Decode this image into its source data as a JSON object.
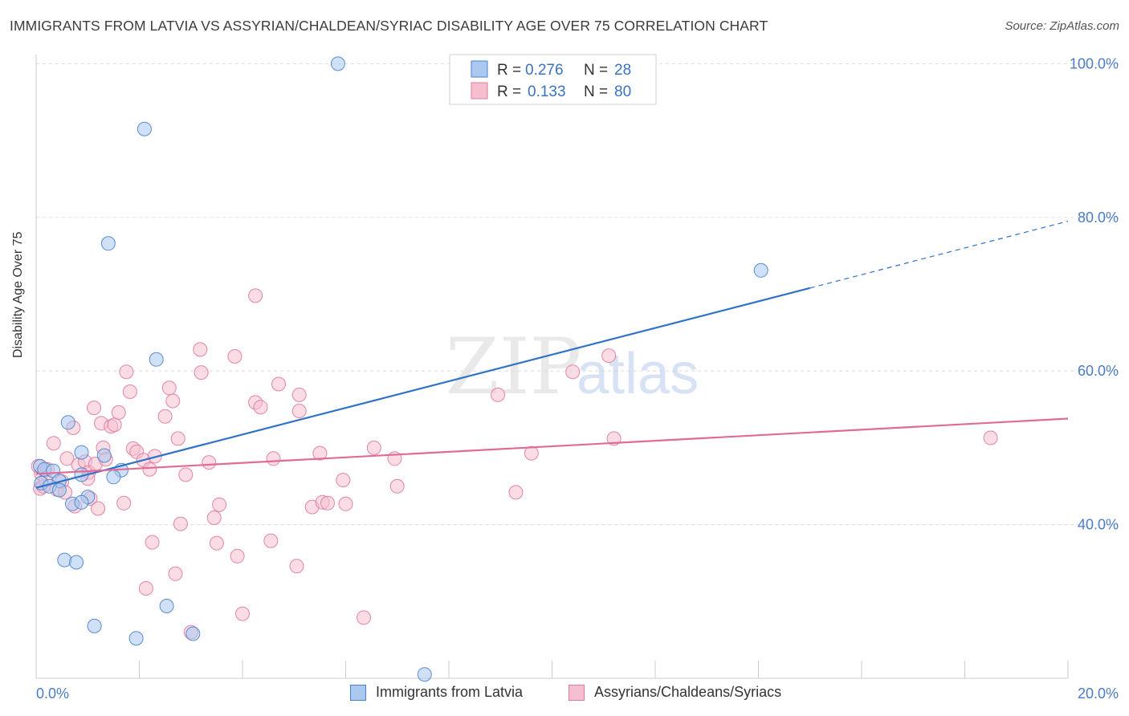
{
  "header": {
    "title": "IMMIGRANTS FROM LATVIA VS ASSYRIAN/CHALDEAN/SYRIAC DISABILITY AGE OVER 75 CORRELATION CHART",
    "source": "Source: ZipAtlas.com"
  },
  "watermark": {
    "zip": "ZIP",
    "atlas": "atlas"
  },
  "colors": {
    "blue_fill": "#aac8f0",
    "blue_stroke": "#4a82cc",
    "blue_line": "#2f72c8",
    "pink_fill": "#f6bfd0",
    "pink_stroke": "#e07a9c",
    "pink_line": "#e06c96",
    "tick_text": "#4a7cc7",
    "grid": "#dddddd"
  },
  "legend": {
    "rows": [
      {
        "series": "blue",
        "r_label": "R =",
        "r_value": "0.276",
        "n_label": "N =",
        "n_value": "28"
      },
      {
        "series": "pink",
        "r_label": "R =",
        "r_value": "0.133",
        "n_label": "N =",
        "n_value": "80"
      }
    ],
    "bottom": [
      {
        "series": "blue",
        "label": "Immigrants from Latvia"
      },
      {
        "series": "pink",
        "label": "Assyrians/Chaldeans/Syriacs"
      }
    ]
  },
  "chart_data": {
    "type": "scatter",
    "title": "IMMIGRANTS FROM LATVIA VS ASSYRIAN/CHALDEAN/SYRIAC DISABILITY AGE OVER 75 CORRELATION CHART",
    "xlabel": "",
    "ylabel": "Disability Age Over 75",
    "xlim": [
      0,
      20
    ],
    "ylim": [
      20,
      102
    ],
    "x_tick_labels": [
      {
        "value": 0,
        "label": "0.0%"
      },
      {
        "value": 20,
        "label": "20.0%"
      }
    ],
    "y_tick_labels": [
      {
        "value": 40,
        "label": "40.0%"
      },
      {
        "value": 60,
        "label": "60.0%"
      },
      {
        "value": 80,
        "label": "80.0%"
      },
      {
        "value": 100,
        "label": "100.0%"
      }
    ],
    "y_gridlines": [
      40,
      60,
      80,
      100
    ],
    "legend_position": "top-center",
    "series": [
      {
        "name": "Immigrants from Latvia",
        "color": "blue",
        "R": 0.276,
        "N": 28,
        "trend": {
          "x0": 0,
          "y0": 44.8,
          "x1": 15.0,
          "y1": 70.8,
          "dash_to_x": 20,
          "dash_to_y": 79.5
        },
        "points": [
          [
            5.85,
            100.0
          ],
          [
            2.1,
            91.5
          ],
          [
            1.4,
            76.6
          ],
          [
            14.05,
            73.1
          ],
          [
            2.33,
            61.5
          ],
          [
            0.62,
            53.3
          ],
          [
            0.88,
            49.4
          ],
          [
            1.32,
            49.0
          ],
          [
            0.08,
            47.6
          ],
          [
            0.16,
            47.2
          ],
          [
            0.33,
            47.0
          ],
          [
            1.65,
            47.1
          ],
          [
            0.88,
            46.5
          ],
          [
            0.45,
            45.7
          ],
          [
            1.5,
            46.2
          ],
          [
            0.1,
            45.4
          ],
          [
            0.26,
            45.0
          ],
          [
            0.45,
            44.5
          ],
          [
            1.0,
            43.6
          ],
          [
            0.7,
            42.7
          ],
          [
            0.88,
            42.9
          ],
          [
            0.55,
            35.4
          ],
          [
            0.78,
            35.1
          ],
          [
            2.53,
            29.4
          ],
          [
            1.13,
            26.8
          ],
          [
            1.94,
            25.2
          ],
          [
            3.04,
            25.8
          ],
          [
            7.53,
            20.5
          ]
        ]
      },
      {
        "name": "Assyrians/Chaldeans/Syriacs",
        "color": "pink",
        "R": 0.133,
        "N": 80,
        "trend": {
          "x0": 0,
          "y0": 46.6,
          "x1": 20,
          "y1": 53.8
        },
        "points": [
          [
            0.04,
            47.6
          ],
          [
            0.1,
            46.6
          ],
          [
            0.08,
            44.7
          ],
          [
            0.14,
            45.0
          ],
          [
            0.22,
            47.2
          ],
          [
            0.34,
            50.6
          ],
          [
            0.4,
            44.6
          ],
          [
            0.5,
            45.6
          ],
          [
            0.56,
            44.2
          ],
          [
            0.6,
            48.6
          ],
          [
            0.72,
            52.6
          ],
          [
            0.75,
            42.4
          ],
          [
            0.82,
            47.8
          ],
          [
            0.95,
            48.2
          ],
          [
            1.02,
            46.8
          ],
          [
            1.05,
            43.4
          ],
          [
            1.12,
            55.2
          ],
          [
            1.15,
            47.9
          ],
          [
            1.2,
            42.1
          ],
          [
            1.26,
            53.2
          ],
          [
            1.3,
            50.0
          ],
          [
            1.35,
            48.5
          ],
          [
            1.45,
            52.8
          ],
          [
            1.52,
            53.0
          ],
          [
            1.6,
            54.6
          ],
          [
            1.7,
            42.8
          ],
          [
            1.75,
            59.9
          ],
          [
            1.82,
            57.3
          ],
          [
            1.88,
            49.9
          ],
          [
            1.95,
            49.5
          ],
          [
            2.08,
            48.4
          ],
          [
            2.13,
            31.7
          ],
          [
            2.2,
            47.2
          ],
          [
            2.25,
            37.7
          ],
          [
            2.3,
            48.9
          ],
          [
            2.5,
            54.1
          ],
          [
            2.58,
            57.8
          ],
          [
            2.65,
            56.1
          ],
          [
            2.7,
            33.6
          ],
          [
            2.75,
            51.2
          ],
          [
            2.8,
            40.1
          ],
          [
            2.9,
            46.5
          ],
          [
            3.0,
            26.0
          ],
          [
            3.18,
            62.8
          ],
          [
            3.2,
            59.8
          ],
          [
            3.35,
            48.1
          ],
          [
            3.45,
            40.9
          ],
          [
            3.55,
            42.6
          ],
          [
            3.5,
            37.6
          ],
          [
            3.85,
            61.9
          ],
          [
            3.9,
            35.9
          ],
          [
            4.0,
            28.4
          ],
          [
            4.25,
            55.9
          ],
          [
            4.35,
            55.3
          ],
          [
            4.25,
            69.8
          ],
          [
            4.55,
            37.9
          ],
          [
            4.6,
            48.6
          ],
          [
            4.7,
            58.3
          ],
          [
            5.05,
            34.6
          ],
          [
            5.1,
            54.8
          ],
          [
            5.1,
            56.9
          ],
          [
            5.35,
            42.3
          ],
          [
            5.5,
            49.3
          ],
          [
            5.55,
            42.9
          ],
          [
            5.65,
            42.8
          ],
          [
            5.95,
            45.8
          ],
          [
            6.0,
            42.7
          ],
          [
            6.35,
            27.9
          ],
          [
            6.55,
            50.0
          ],
          [
            6.95,
            48.6
          ],
          [
            8.95,
            56.9
          ],
          [
            9.3,
            44.2
          ],
          [
            9.6,
            49.3
          ],
          [
            10.4,
            59.9
          ],
          [
            11.1,
            62.0
          ],
          [
            11.2,
            51.2
          ],
          [
            18.5,
            51.3
          ],
          [
            7.0,
            45.0
          ],
          [
            0.18,
            45.8
          ],
          [
            1.0,
            46.0
          ]
        ]
      }
    ]
  }
}
